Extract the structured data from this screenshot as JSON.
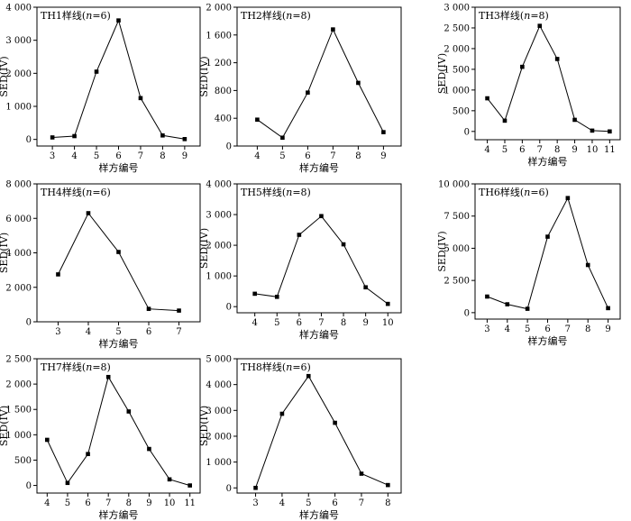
{
  "chart_data": [
    {
      "type": "line",
      "title": "TH1样线(n=6)",
      "title_main": "TH1样线(",
      "title_var": "n",
      "title_rest": "=6)",
      "xlabel": "样方编号",
      "ylabel": "SED(IV)",
      "x": [
        3,
        4,
        5,
        6,
        7,
        8,
        9
      ],
      "y": [
        60,
        100,
        2050,
        3600,
        1250,
        120,
        10
      ],
      "xlim": [
        2.3,
        9.7
      ],
      "ylim": [
        -200,
        4000
      ],
      "yticks": [
        0,
        1000,
        2000,
        3000,
        4000
      ],
      "yticklabels": [
        "0",
        "1 000",
        "2 000",
        "3 000",
        "4 000"
      ]
    },
    {
      "type": "line",
      "title": "TH2样线(n=8)",
      "title_main": "TH2样线(",
      "title_var": "n",
      "title_rest": "=8)",
      "xlabel": "样方编号",
      "ylabel": "SED(IV)",
      "x": [
        4,
        5,
        6,
        7,
        8,
        9
      ],
      "y": [
        380,
        120,
        770,
        1680,
        910,
        200
      ],
      "xlim": [
        3.2,
        9.7
      ],
      "ylim": [
        0,
        2000
      ],
      "yticks": [
        0,
        400,
        800,
        1200,
        1600,
        2000
      ],
      "yticklabels": [
        "0",
        "400",
        "800",
        "1 200",
        "1 600",
        "2 000"
      ]
    },
    {
      "type": "line",
      "title": "TH3样线(n=8)",
      "title_main": "TH3样线(",
      "title_var": "n",
      "title_rest": "=8)",
      "xlabel": "样方编号",
      "ylabel": "SED(IV)",
      "x": [
        4,
        5,
        6,
        7,
        8,
        9,
        10,
        11
      ],
      "y": [
        800,
        260,
        1560,
        2550,
        1750,
        280,
        20,
        0
      ],
      "xlim": [
        3.3,
        11.6
      ],
      "ylim": [
        -200,
        3000
      ],
      "yticks": [
        0,
        500,
        1000,
        1500,
        2000,
        2500,
        3000
      ],
      "yticklabels": [
        "0",
        "500",
        "1 000",
        "1 500",
        "2 000",
        "2 500",
        "3 000"
      ]
    },
    {
      "type": "line",
      "title": "TH4样线(n=6)",
      "title_main": "TH4样线(",
      "title_var": "n",
      "title_rest": "=6)",
      "xlabel": "样方编号",
      "ylabel": "SED(IV)",
      "x": [
        3,
        4,
        5,
        6,
        7
      ],
      "y": [
        2750,
        6300,
        4050,
        750,
        650
      ],
      "xlim": [
        2.3,
        7.7
      ],
      "ylim": [
        0,
        8000
      ],
      "yticks": [
        0,
        2000,
        4000,
        6000,
        8000
      ],
      "yticklabels": [
        "0",
        "2 000",
        "4 000",
        "6 000",
        "8 000"
      ]
    },
    {
      "type": "line",
      "title": "TH5样线(n=8)",
      "title_main": "TH5样线(",
      "title_var": "n",
      "title_rest": "=8)",
      "xlabel": "样方编号",
      "ylabel": "SED(IV)",
      "x": [
        4,
        5,
        6,
        7,
        8,
        9,
        10
      ],
      "y": [
        420,
        320,
        2340,
        2950,
        2030,
        630,
        90
      ],
      "xlim": [
        3.2,
        10.6
      ],
      "ylim": [
        -200,
        4000
      ],
      "yticks": [
        0,
        1000,
        2000,
        3000,
        4000
      ],
      "yticklabels": [
        "0",
        "1 000",
        "2 000",
        "3 000",
        "4 000"
      ]
    },
    {
      "type": "line",
      "title": "TH6样线(n=6)",
      "title_main": "TH6样线(",
      "title_var": "n",
      "title_rest": "=6)",
      "xlabel": "样方编号",
      "ylabel": "SED(IV)",
      "x": [
        3,
        4,
        5,
        6,
        7,
        8,
        9
      ],
      "y": [
        1250,
        650,
        300,
        5900,
        8900,
        3700,
        350
      ],
      "xlim": [
        2.4,
        9.6
      ],
      "ylim": [
        -500,
        10000
      ],
      "yticks": [
        0,
        2500,
        5000,
        7500,
        10000
      ],
      "yticklabels": [
        "0",
        "2 500",
        "5 000",
        "7 500",
        "10 000"
      ]
    },
    {
      "type": "line",
      "title": "TH7样线(n=8)",
      "title_main": "TH7样线(",
      "title_var": "n",
      "title_rest": "=8)",
      "xlabel": "样方编号",
      "ylabel": "SED(IV)",
      "x": [
        4,
        5,
        6,
        7,
        8,
        9,
        10,
        11
      ],
      "y": [
        900,
        50,
        620,
        2140,
        1460,
        720,
        120,
        0
      ],
      "xlim": [
        3.5,
        11.5
      ],
      "ylim": [
        -150,
        2500
      ],
      "yticks": [
        0,
        500,
        1000,
        1500,
        2000,
        2500
      ],
      "yticklabels": [
        "0",
        "500",
        "1 000",
        "1 500",
        "2 000",
        "2 500"
      ]
    },
    {
      "type": "line",
      "title": "TH8样线(n=6)",
      "title_main": "TH8样线(",
      "title_var": "n",
      "title_rest": "=6)",
      "xlabel": "样方编号",
      "ylabel": "SED(IV)",
      "x": [
        3,
        4,
        5,
        6,
        7,
        8
      ],
      "y": [
        0,
        2870,
        4330,
        2520,
        550,
        110
      ],
      "xlim": [
        2.3,
        8.5
      ],
      "ylim": [
        -200,
        5000
      ],
      "yticks": [
        0,
        1000,
        2000,
        3000,
        4000,
        5000
      ],
      "yticklabels": [
        "0",
        "1 000",
        "2 000",
        "3 000",
        "4 000",
        "5 000"
      ]
    }
  ],
  "colors": {
    "line": "#000000",
    "marker": "#000000",
    "axis": "#000000",
    "background": "#ffffff"
  }
}
